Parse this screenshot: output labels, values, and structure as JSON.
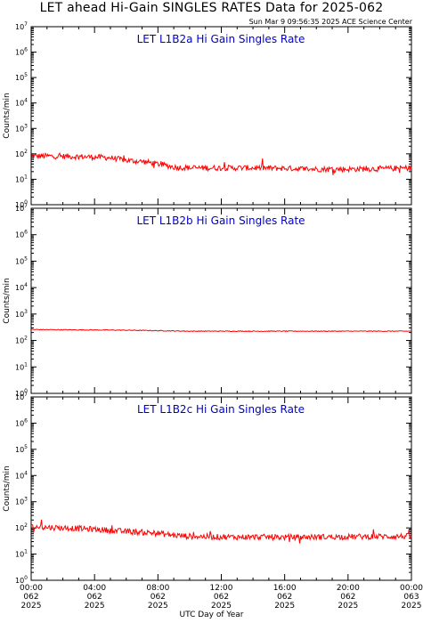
{
  "header": {
    "title": "LET ahead Hi-Gain SINGLES RATES Data for 2025-062",
    "timestamp": "Sun Mar  9 09:56:35 2025 ACE Science Center"
  },
  "xaxis": {
    "label": "UTC Day of Year",
    "ticks": [
      {
        "time": "00:00",
        "doy": "062",
        "year": "2025"
      },
      {
        "time": "04:00",
        "doy": "062",
        "year": "2025"
      },
      {
        "time": "08:00",
        "doy": "062",
        "year": "2025"
      },
      {
        "time": "12:00",
        "doy": "062",
        "year": "2025"
      },
      {
        "time": "16:00",
        "doy": "062",
        "year": "2025"
      },
      {
        "time": "20:00",
        "doy": "062",
        "year": "2025"
      },
      {
        "time": "00:00",
        "doy": "063",
        "year": "2025"
      }
    ]
  },
  "colors": {
    "series": "#ff0000",
    "panel_title": "#0000cc"
  },
  "chart_data": [
    {
      "type": "line",
      "title": "LET L1B2a Hi Gain Singles Rate",
      "ylabel": "Counts/min",
      "yscale": "log",
      "ylim_exp": [
        0,
        7
      ],
      "xlim_hours": [
        0,
        24
      ],
      "series": [
        {
          "hours": [
            0,
            1,
            2,
            3,
            4,
            5,
            6,
            7,
            8,
            9,
            10,
            12,
            14,
            16,
            18,
            20,
            22,
            24
          ],
          "values": [
            80,
            82,
            80,
            78,
            75,
            70,
            55,
            50,
            40,
            30,
            28,
            28,
            28,
            27,
            25,
            25,
            26,
            28
          ]
        }
      ]
    },
    {
      "type": "line",
      "title": "LET L1B2b Hi Gain Singles Rate",
      "ylabel": "Counts/min",
      "yscale": "log",
      "ylim_exp": [
        0,
        7
      ],
      "xlim_hours": [
        0,
        24
      ],
      "series": [
        {
          "hours": [
            0,
            2,
            4,
            6,
            8,
            10,
            12,
            14,
            16,
            18,
            20,
            22,
            24
          ],
          "values": [
            260,
            255,
            250,
            245,
            235,
            225,
            225,
            225,
            225,
            225,
            225,
            225,
            225
          ]
        }
      ]
    },
    {
      "type": "line",
      "title": "LET L1B2c Hi Gain Singles Rate",
      "ylabel": "Counts/min",
      "yscale": "log",
      "ylim_exp": [
        0,
        7
      ],
      "xlim_hours": [
        0,
        24
      ],
      "series": [
        {
          "hours": [
            0,
            1,
            2,
            3,
            4,
            5,
            6,
            7,
            8,
            9,
            10,
            12,
            14,
            16,
            18,
            20,
            22,
            24
          ],
          "values": [
            110,
            105,
            100,
            95,
            88,
            80,
            72,
            68,
            62,
            52,
            48,
            45,
            45,
            44,
            45,
            46,
            47,
            48
          ]
        }
      ]
    }
  ]
}
